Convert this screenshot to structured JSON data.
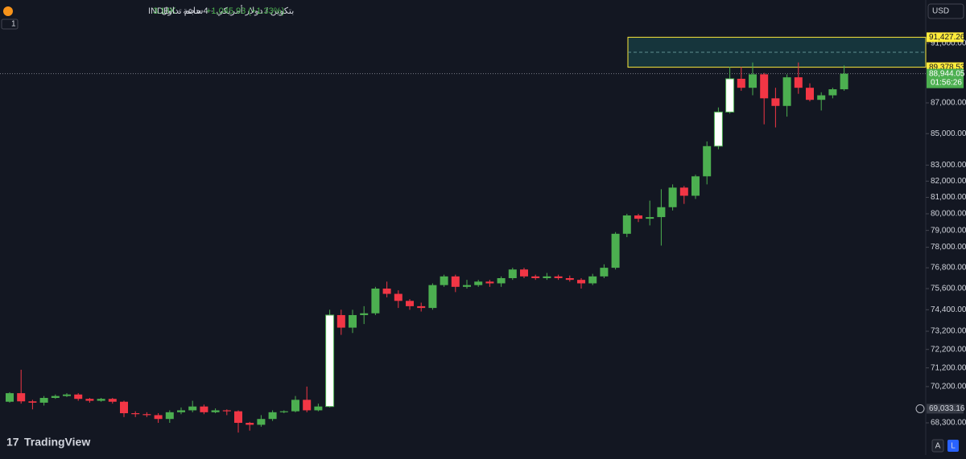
{
  "header": {
    "symbol_title": "بتكوين / دولار أمريكي · 4ساعة · INDEX",
    "volume_label": "حجم تداول",
    "volume_value": "3.14K",
    "change": "+1,045.93 (+1.33%)",
    "interval_count": "1"
  },
  "currency": "USD",
  "logo": "TradingView",
  "buttons": [
    "A",
    "L"
  ],
  "chart_data": {
    "type": "candlestick",
    "log_scale": true,
    "ylim": [
      66660,
      94040
    ],
    "yticks": [
      {
        "value": 91000,
        "label": "91,000.00"
      },
      {
        "value": 87000,
        "label": "87,000.00"
      },
      {
        "value": 85000,
        "label": "85,000.00"
      },
      {
        "value": 83000,
        "label": "83,000.00"
      },
      {
        "value": 82000,
        "label": "82,000.00"
      },
      {
        "value": 81000,
        "label": "81,000.00"
      },
      {
        "value": 80000,
        "label": "80,000.00"
      },
      {
        "value": 79000,
        "label": "79,000.00"
      },
      {
        "value": 78000,
        "label": "78,000.00"
      },
      {
        "value": 76800,
        "label": "76,800.00"
      },
      {
        "value": 75600,
        "label": "75,600.00"
      },
      {
        "value": 74400,
        "label": "74,400.00"
      },
      {
        "value": 73200,
        "label": "73,200.00"
      },
      {
        "value": 72200,
        "label": "72,200.00"
      },
      {
        "value": 71200,
        "label": "71,200.00"
      },
      {
        "value": 70200,
        "label": "70,200.00"
      },
      {
        "value": 68300,
        "label": "68,300.00"
      }
    ],
    "up_color": "#4caf50",
    "down_color": "#f23645",
    "highlight_color": "#ffffff",
    "highlighted": [
      28,
      62,
      63
    ],
    "candles": [
      {
        "o": 69400,
        "h": 69900,
        "l": 69350,
        "c": 69850
      },
      {
        "o": 69850,
        "h": 71100,
        "l": 69300,
        "c": 69420
      },
      {
        "o": 69420,
        "h": 69500,
        "l": 69000,
        "c": 69350
      },
      {
        "o": 69350,
        "h": 69700,
        "l": 69200,
        "c": 69600
      },
      {
        "o": 69600,
        "h": 69780,
        "l": 69550,
        "c": 69700
      },
      {
        "o": 69700,
        "h": 69850,
        "l": 69650,
        "c": 69780
      },
      {
        "o": 69780,
        "h": 69850,
        "l": 69450,
        "c": 69550
      },
      {
        "o": 69550,
        "h": 69600,
        "l": 69350,
        "c": 69450
      },
      {
        "o": 69450,
        "h": 69600,
        "l": 69400,
        "c": 69550
      },
      {
        "o": 69550,
        "h": 69600,
        "l": 69300,
        "c": 69400
      },
      {
        "o": 69400,
        "h": 69450,
        "l": 68600,
        "c": 68800
      },
      {
        "o": 68800,
        "h": 68900,
        "l": 68600,
        "c": 68750
      },
      {
        "o": 68750,
        "h": 68850,
        "l": 68600,
        "c": 68700
      },
      {
        "o": 68700,
        "h": 68800,
        "l": 68300,
        "c": 68500
      },
      {
        "o": 68500,
        "h": 68950,
        "l": 68300,
        "c": 68850
      },
      {
        "o": 68850,
        "h": 69100,
        "l": 68750,
        "c": 68950
      },
      {
        "o": 68950,
        "h": 69450,
        "l": 68850,
        "c": 69150
      },
      {
        "o": 69150,
        "h": 69250,
        "l": 68750,
        "c": 68850
      },
      {
        "o": 68850,
        "h": 69050,
        "l": 68800,
        "c": 68950
      },
      {
        "o": 68950,
        "h": 69000,
        "l": 68700,
        "c": 68900
      },
      {
        "o": 68900,
        "h": 68950,
        "l": 67800,
        "c": 68300
      },
      {
        "o": 68300,
        "h": 68350,
        "l": 67900,
        "c": 68200
      },
      {
        "o": 68200,
        "h": 68700,
        "l": 68100,
        "c": 68500
      },
      {
        "o": 68500,
        "h": 68950,
        "l": 68400,
        "c": 68850
      },
      {
        "o": 68850,
        "h": 68950,
        "l": 68800,
        "c": 68900
      },
      {
        "o": 68900,
        "h": 69700,
        "l": 68850,
        "c": 69500
      },
      {
        "o": 69500,
        "h": 70200,
        "l": 68850,
        "c": 68950
      },
      {
        "o": 68950,
        "h": 69300,
        "l": 68900,
        "c": 69150
      },
      {
        "o": 69150,
        "h": 74400,
        "l": 69100,
        "c": 74100
      },
      {
        "o": 74100,
        "h": 74400,
        "l": 73000,
        "c": 73400
      },
      {
        "o": 73400,
        "h": 74400,
        "l": 73100,
        "c": 74100
      },
      {
        "o": 74100,
        "h": 74600,
        "l": 73600,
        "c": 74200
      },
      {
        "o": 74200,
        "h": 75700,
        "l": 74100,
        "c": 75600
      },
      {
        "o": 75600,
        "h": 76000,
        "l": 75100,
        "c": 75300
      },
      {
        "o": 75300,
        "h": 75500,
        "l": 74500,
        "c": 74900
      },
      {
        "o": 74900,
        "h": 75000,
        "l": 74400,
        "c": 74600
      },
      {
        "o": 74600,
        "h": 74800,
        "l": 74300,
        "c": 74500
      },
      {
        "o": 74500,
        "h": 75900,
        "l": 74400,
        "c": 75800
      },
      {
        "o": 75800,
        "h": 76400,
        "l": 75700,
        "c": 76300
      },
      {
        "o": 76300,
        "h": 76400,
        "l": 75400,
        "c": 75700
      },
      {
        "o": 75700,
        "h": 76100,
        "l": 75600,
        "c": 75800
      },
      {
        "o": 75800,
        "h": 76100,
        "l": 75700,
        "c": 76000
      },
      {
        "o": 76000,
        "h": 76100,
        "l": 75700,
        "c": 75900
      },
      {
        "o": 75900,
        "h": 76300,
        "l": 75700,
        "c": 76200
      },
      {
        "o": 76200,
        "h": 76800,
        "l": 76100,
        "c": 76700
      },
      {
        "o": 76700,
        "h": 76800,
        "l": 76200,
        "c": 76300
      },
      {
        "o": 76300,
        "h": 76400,
        "l": 76100,
        "c": 76200
      },
      {
        "o": 76200,
        "h": 76500,
        "l": 76100,
        "c": 76300
      },
      {
        "o": 76300,
        "h": 76400,
        "l": 76100,
        "c": 76200
      },
      {
        "o": 76200,
        "h": 76350,
        "l": 76000,
        "c": 76100
      },
      {
        "o": 76100,
        "h": 76200,
        "l": 75600,
        "c": 75900
      },
      {
        "o": 75900,
        "h": 76450,
        "l": 75800,
        "c": 76300
      },
      {
        "o": 76300,
        "h": 77000,
        "l": 76200,
        "c": 76800
      },
      {
        "o": 76800,
        "h": 78900,
        "l": 76700,
        "c": 78800
      },
      {
        "o": 78800,
        "h": 80000,
        "l": 78600,
        "c": 79900
      },
      {
        "o": 79900,
        "h": 80000,
        "l": 79500,
        "c": 79700
      },
      {
        "o": 79700,
        "h": 80800,
        "l": 79300,
        "c": 79800
      },
      {
        "o": 79800,
        "h": 81500,
        "l": 78100,
        "c": 80400
      },
      {
        "o": 80400,
        "h": 81800,
        "l": 80200,
        "c": 81600
      },
      {
        "o": 81600,
        "h": 81700,
        "l": 80600,
        "c": 81100
      },
      {
        "o": 81100,
        "h": 82400,
        "l": 80900,
        "c": 82300
      },
      {
        "o": 82300,
        "h": 84500,
        "l": 81800,
        "c": 84200
      },
      {
        "o": 84200,
        "h": 86700,
        "l": 84000,
        "c": 86400
      },
      {
        "o": 86400,
        "h": 89400,
        "l": 86300,
        "c": 88600
      },
      {
        "o": 88600,
        "h": 89400,
        "l": 87800,
        "c": 88000
      },
      {
        "o": 88000,
        "h": 89700,
        "l": 87500,
        "c": 88900
      },
      {
        "o": 88900,
        "h": 89000,
        "l": 85600,
        "c": 87300
      },
      {
        "o": 87300,
        "h": 88000,
        "l": 85400,
        "c": 86800
      },
      {
        "o": 86800,
        "h": 88900,
        "l": 86100,
        "c": 88700
      },
      {
        "o": 88700,
        "h": 89700,
        "l": 87600,
        "c": 88000
      },
      {
        "o": 88000,
        "h": 88300,
        "l": 87100,
        "c": 87200
      },
      {
        "o": 87200,
        "h": 87700,
        "l": 86500,
        "c": 87500
      },
      {
        "o": 87500,
        "h": 88000,
        "l": 87300,
        "c": 87900
      },
      {
        "o": 87900,
        "h": 89500,
        "l": 87800,
        "c": 88944.05
      }
    ],
    "range_box": {
      "top": 91427.26,
      "bottom": 89378.53,
      "top_label": "91,427.26",
      "bottom_label": "89,378.53",
      "color": "#ffeb3b"
    },
    "last_price": {
      "value": 88944.05,
      "label": "88,944.05",
      "countdown": "01:56:26"
    },
    "crosshair_price": {
      "value": 69033.16,
      "label": "69,033.16"
    }
  }
}
